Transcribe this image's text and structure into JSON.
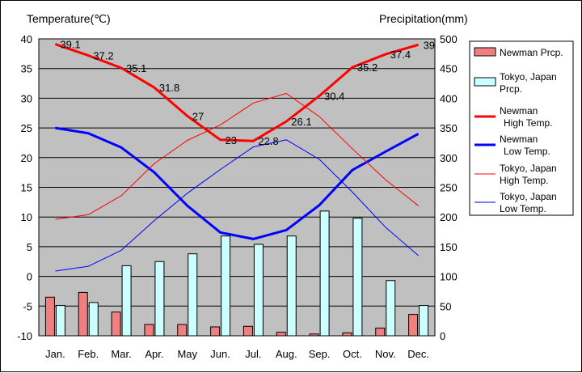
{
  "chart_data": {
    "type": "bar+line",
    "left_axis_title": "Temperature(℃)",
    "right_axis_title": "Precipitation(mm)",
    "categories": [
      "Jan.",
      "Feb.",
      "Mar.",
      "Apr.",
      "May",
      "Jun.",
      "Jul.",
      "Aug.",
      "Sep.",
      "Oct.",
      "Nov.",
      "Dec."
    ],
    "y_left": {
      "min": -10,
      "max": 40,
      "step": 5,
      "ticks": [
        "40",
        "35",
        "30",
        "25",
        "20",
        "15",
        "10",
        "5",
        "0",
        "-5",
        "-10"
      ]
    },
    "y_right": {
      "min": 0,
      "max": 500,
      "step": 50,
      "ticks": [
        "500",
        "450",
        "400",
        "350",
        "300",
        "250",
        "200",
        "150",
        "100",
        "50",
        "0"
      ]
    },
    "bar_series": [
      {
        "name": "Newman Prcp.",
        "color": "#f08080",
        "values": [
          65,
          73,
          40,
          19,
          19,
          15,
          16,
          6,
          3,
          5,
          13,
          36
        ]
      },
      {
        "name": "Tokyo, Japan Prcp.",
        "color": "#ccffff",
        "values": [
          51,
          56,
          118,
          125,
          138,
          168,
          154,
          168,
          210,
          198,
          93,
          51
        ]
      }
    ],
    "line_series": [
      {
        "name": "Newman High Temp.",
        "color": "#ff0000",
        "width": "thick",
        "values": [
          39.1,
          37.2,
          35.1,
          31.8,
          27,
          23,
          22.8,
          26.1,
          30.4,
          35.2,
          37.4,
          39
        ],
        "labels": [
          "39.1",
          "37.2",
          "35.1",
          "31.8",
          "27",
          "23",
          "22.8",
          "26.1",
          "30.4",
          "35.2",
          "37.4",
          "39"
        ]
      },
      {
        "name": "Newman Low Temp.",
        "color": "#0000ff",
        "width": "thick",
        "values": [
          25,
          24.1,
          21.7,
          17.5,
          11.9,
          7.4,
          6.3,
          7.8,
          12,
          17.9,
          21,
          24
        ]
      },
      {
        "name": "Tokyo, Japan High Temp.",
        "color": "#ff0000",
        "width": "thin",
        "values": [
          9.6,
          10.4,
          13.6,
          19,
          22.9,
          25.5,
          29.2,
          30.8,
          26.9,
          21.5,
          16.3,
          11.9
        ]
      },
      {
        "name": "Tokyo, Japan Low Temp.",
        "color": "#0000ff",
        "width": "thin",
        "values": [
          0.9,
          1.7,
          4.4,
          9.4,
          14,
          18,
          21.8,
          23,
          19.7,
          14.2,
          8.3,
          3.5
        ]
      }
    ],
    "legend": {
      "position": "right",
      "entries": [
        [
          "Newman Prcp."
        ],
        [
          "Tokyo, Japan",
          "Prcp."
        ],
        [
          "Newman",
          "High Temp."
        ],
        [
          "Newman",
          "Low Temp."
        ],
        [
          "Tokyo, Japan",
          "High Temp."
        ],
        [
          "Tokyo, Japan",
          "Low Temp."
        ]
      ]
    },
    "plot_background": "#c0c0c0",
    "grid": true
  }
}
